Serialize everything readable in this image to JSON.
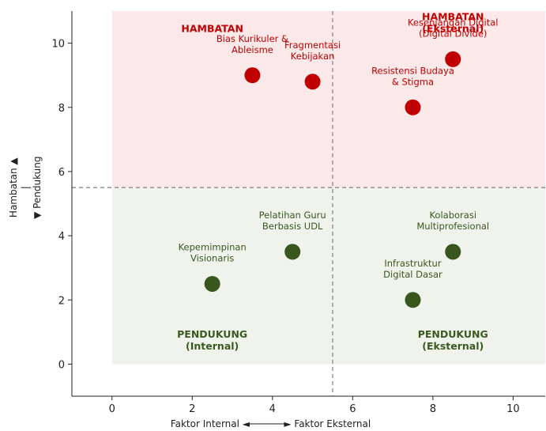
{
  "chart_data": {
    "type": "scatter",
    "title": "",
    "xlabel": "Faktor Internal ◄──────► Faktor Eksternal",
    "ylabel_lines": [
      "Hambatan ▲",
      "|",
      "▼ Pendukung"
    ],
    "xlim": [
      -1,
      10.8
    ],
    "ylim": [
      -1,
      11
    ],
    "xticks": [
      0,
      2,
      4,
      6,
      8,
      10
    ],
    "yticks": [
      0,
      2,
      4,
      6,
      8,
      10
    ],
    "dividers": {
      "x": 5.5,
      "y": 5.5
    },
    "regions": [
      {
        "name": "hambatan",
        "x": [
          0,
          10.8
        ],
        "y": [
          5.5,
          11
        ],
        "color": "#fbe9e9"
      },
      {
        "name": "pendukung",
        "x": [
          0,
          10.8
        ],
        "y": [
          0,
          5.5
        ],
        "color": "#eff3ec"
      }
    ],
    "quadrant_labels": [
      {
        "lines": [
          "HAMBATAN"
        ],
        "x": 2.5,
        "y": 10.35,
        "color": "#c00000"
      },
      {
        "lines": [
          "HAMBATAN",
          "(Eksternal)"
        ],
        "x": 8.5,
        "y": 10.35,
        "color": "#c00000"
      },
      {
        "lines": [
          "PENDUKUNG",
          "(Internal)"
        ],
        "x": 2.5,
        "y": 0.45,
        "color": "#3a5a20"
      },
      {
        "lines": [
          "PENDUKUNG",
          "(Eksternal)"
        ],
        "x": 8.5,
        "y": 0.45,
        "color": "#3a5a20"
      }
    ],
    "series": [
      {
        "name": "Hambatan",
        "color": "#c00000",
        "points": [
          {
            "x": 3.5,
            "y": 9.0,
            "label": [
              "Bias Kurikuler &",
              "Ableisme"
            ],
            "lx": 3.5,
            "ly": 9.7
          },
          {
            "x": 5.0,
            "y": 8.8,
            "label": [
              "Fragmentasi",
              "Kebijakan"
            ],
            "lx": 5.0,
            "ly": 9.5
          },
          {
            "x": 8.5,
            "y": 9.5,
            "label": [
              "Kesenjangan Digital",
              "(Digital Divide)"
            ],
            "lx": 8.5,
            "ly": 10.2
          },
          {
            "x": 7.5,
            "y": 8.0,
            "label": [
              "Resistensi Budaya",
              "& Stigma"
            ],
            "lx": 7.5,
            "ly": 8.7
          }
        ]
      },
      {
        "name": "Pendukung",
        "color": "#38561e",
        "points": [
          {
            "x": 2.5,
            "y": 2.5,
            "label": [
              "Kepemimpinan",
              "Visionaris"
            ],
            "lx": 2.5,
            "ly": 3.2
          },
          {
            "x": 4.5,
            "y": 3.5,
            "label": [
              "Pelatihan Guru",
              "Berbasis UDL"
            ],
            "lx": 4.5,
            "ly": 4.2
          },
          {
            "x": 8.5,
            "y": 3.5,
            "label": [
              "Kolaborasi",
              "Multiprofesional"
            ],
            "lx": 8.5,
            "ly": 4.2
          },
          {
            "x": 7.5,
            "y": 2.0,
            "label": [
              "Infrastruktur",
              "Digital Dasar"
            ],
            "lx": 7.5,
            "ly": 2.7
          }
        ]
      }
    ]
  }
}
